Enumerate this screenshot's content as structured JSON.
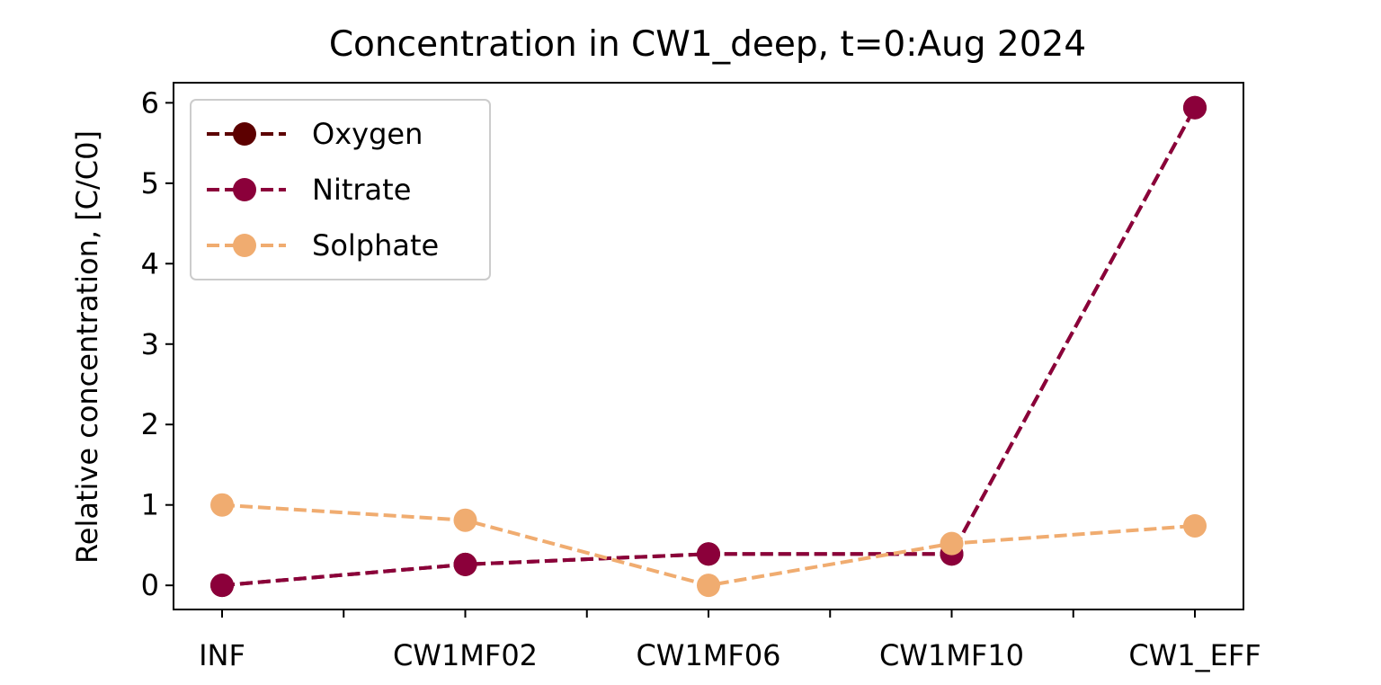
{
  "chart_data": {
    "type": "line",
    "title": "Concentration in CW1_deep, t=0:Aug 2024",
    "xlabel": "",
    "ylabel": "Relative concentration, [C/C0]",
    "categories": [
      "INF",
      "CW1MF02",
      "CW1MF06",
      "CW1MF10",
      "CW1_EFF"
    ],
    "ylim": [
      -0.3,
      6.25
    ],
    "yticks": [
      0,
      1,
      2,
      3,
      4,
      5,
      6
    ],
    "grid": false,
    "legend_position": "top-left",
    "series": [
      {
        "name": "Oxygen",
        "color": "#5c0000",
        "values": [
          0.0,
          0.26,
          0.39,
          0.39,
          5.94
        ]
      },
      {
        "name": "Nitrate",
        "color": "#8b003a",
        "values": [
          0.0,
          0.26,
          0.39,
          0.39,
          5.94
        ]
      },
      {
        "name": "Solphate",
        "color": "#f0ac70",
        "values": [
          1.0,
          0.81,
          0.0,
          0.52,
          0.74
        ]
      }
    ]
  }
}
